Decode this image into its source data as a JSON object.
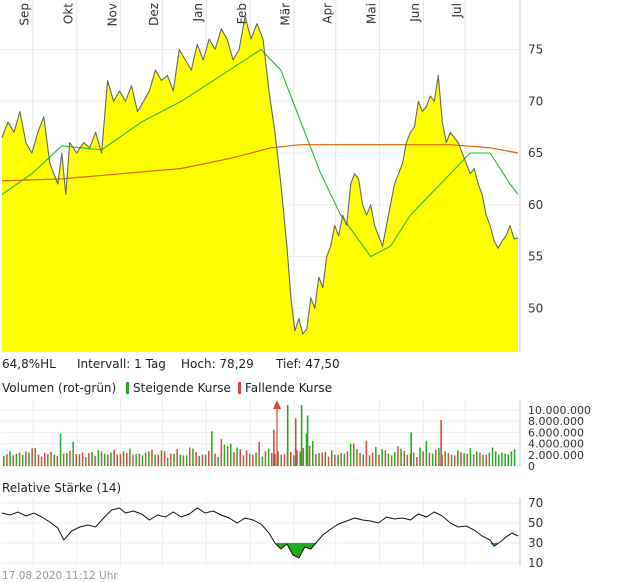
{
  "price_panel": {
    "months": [
      "Sep",
      "Okt",
      "Nov",
      "Dez",
      "Jan",
      "Feb",
      "Mär",
      "Apr",
      "Mai",
      "Jun",
      "Jul"
    ],
    "yticks": [
      "75",
      "70",
      "65",
      "60",
      "55",
      "50"
    ],
    "stats": {
      "hl": "64,8%HL",
      "interval": "Intervall: 1 Tag",
      "high": "Hoch:  78,29",
      "low": "Tief:  47,50"
    },
    "colors": {
      "fill": "#ffff00",
      "price": "#666666",
      "ma_short": "#22bb33",
      "ma_long": "#e06000"
    }
  },
  "volume_panel": {
    "title": "Volumen (rot-grün)",
    "legend_up": "Steigende Kurse",
    "legend_down": "Fallende Kurse",
    "yticks": [
      "10.000.000",
      "8.000.000",
      "6.000.000",
      "4.000.000",
      "2.000.000",
      "0"
    ],
    "colors": {
      "up": "#22aa22",
      "down": "#dd4444"
    }
  },
  "rsi_panel": {
    "title": "Relative Stärke (14)",
    "yticks": [
      "70",
      "50",
      "30",
      "10"
    ],
    "colors": {
      "line": "#111111",
      "oversold": "#22aa22"
    }
  },
  "footer": {
    "timestamp": "17.08.2020 11:12 Uhr"
  },
  "chart_data": [
    {
      "type": "line",
      "name": "price",
      "ylim": [
        45,
        80
      ],
      "x_range": [
        "2019-08-19",
        "2020-08-17"
      ],
      "series": [
        {
          "values": [
            [
              0,
              66.5
            ],
            [
              6,
              68
            ],
            [
              12,
              67
            ],
            [
              18,
              69
            ],
            [
              24,
              66
            ],
            [
              30,
              65
            ],
            [
              36,
              67
            ],
            [
              42,
              68.5
            ],
            [
              48,
              64
            ],
            [
              52,
              63
            ],
            [
              56,
              62
            ],
            [
              60,
              65
            ],
            [
              64,
              61
            ],
            [
              68,
              66
            ],
            [
              75,
              65
            ],
            [
              82,
              66
            ],
            [
              88,
              65.5
            ],
            [
              94,
              67
            ],
            [
              100,
              65
            ],
            [
              106,
              72
            ],
            [
              112,
              70
            ],
            [
              118,
              71
            ],
            [
              124,
              70
            ],
            [
              130,
              71.5
            ],
            [
              136,
              69
            ],
            [
              142,
              70
            ],
            [
              148,
              71
            ],
            [
              154,
              73
            ],
            [
              160,
              72
            ],
            [
              166,
              72.5
            ],
            [
              172,
              71
            ],
            [
              178,
              75
            ],
            [
              184,
              74
            ],
            [
              190,
              73
            ],
            [
              196,
              75.5
            ],
            [
              202,
              74
            ],
            [
              208,
              76
            ],
            [
              214,
              75
            ],
            [
              220,
              77
            ],
            [
              226,
              76
            ],
            [
              232,
              74
            ],
            [
              238,
              75
            ],
            [
              244,
              78.2
            ],
            [
              250,
              76
            ],
            [
              256,
              77.5
            ],
            [
              262,
              76
            ],
            [
              268,
              71
            ],
            [
              274,
              67
            ],
            [
              280,
              62
            ],
            [
              286,
              56
            ],
            [
              290,
              51
            ],
            [
              294,
              47.8
            ],
            [
              298,
              49
            ],
            [
              302,
              47.5
            ],
            [
              306,
              48
            ],
            [
              310,
              51
            ],
            [
              314,
              50
            ],
            [
              318,
              53
            ],
            [
              322,
              52
            ],
            [
              326,
              55
            ],
            [
              330,
              56
            ],
            [
              334,
              58
            ],
            [
              338,
              57
            ],
            [
              342,
              59
            ],
            [
              346,
              58
            ],
            [
              350,
              62
            ],
            [
              354,
              63
            ],
            [
              358,
              62.5
            ],
            [
              362,
              60
            ],
            [
              366,
              59
            ],
            [
              370,
              60
            ],
            [
              374,
              58
            ],
            [
              378,
              57
            ],
            [
              382,
              56
            ],
            [
              386,
              58
            ],
            [
              390,
              60
            ],
            [
              394,
              62
            ],
            [
              398,
              63
            ],
            [
              402,
              64
            ],
            [
              406,
              66
            ],
            [
              410,
              67
            ],
            [
              414,
              67.5
            ],
            [
              418,
              70
            ],
            [
              422,
              69
            ],
            [
              426,
              69.5
            ],
            [
              430,
              70.5
            ],
            [
              434,
              70
            ],
            [
              438,
              72.5
            ],
            [
              442,
              68
            ],
            [
              446,
              66
            ],
            [
              450,
              67
            ],
            [
              454,
              66.5
            ],
            [
              458,
              66
            ],
            [
              462,
              65
            ],
            [
              466,
              64
            ],
            [
              470,
              63
            ],
            [
              474,
              63.5
            ],
            [
              478,
              62
            ],
            [
              482,
              61
            ],
            [
              486,
              59
            ],
            [
              490,
              58
            ],
            [
              494,
              56.5
            ],
            [
              498,
              55.8
            ],
            [
              502,
              56.5
            ],
            [
              506,
              57
            ],
            [
              510,
              58
            ],
            [
              514,
              56.7
            ],
            [
              518,
              56.8
            ]
          ]
        },
        {
          "values": [
            [
              0,
              61
            ],
            [
              30,
              63
            ],
            [
              60,
              65.7
            ],
            [
              100,
              65.3
            ],
            [
              140,
              68
            ],
            [
              180,
              70
            ],
            [
              220,
              72.5
            ],
            [
              260,
              75
            ],
            [
              280,
              73
            ],
            [
              300,
              68
            ],
            [
              320,
              63
            ],
            [
              340,
              59
            ],
            [
              370,
              55
            ],
            [
              390,
              56
            ],
            [
              410,
              59
            ],
            [
              430,
              61
            ],
            [
              450,
              63
            ],
            [
              470,
              65
            ],
            [
              490,
              65
            ],
            [
              510,
              62
            ],
            [
              518,
              61
            ]
          ]
        },
        {
          "values": [
            [
              0,
              62.3
            ],
            [
              60,
              62.5
            ],
            [
              120,
              63
            ],
            [
              180,
              63.5
            ],
            [
              230,
              64.5
            ],
            [
              270,
              65.5
            ],
            [
              300,
              65.8
            ],
            [
              380,
              65.8
            ],
            [
              450,
              65.8
            ],
            [
              490,
              65.5
            ],
            [
              518,
              65
            ]
          ]
        }
      ]
    },
    {
      "type": "bar",
      "name": "volume",
      "ylim": [
        0,
        11000000
      ],
      "up_values": [
        1800000,
        2600000,
        2200000,
        2000000,
        2400000,
        3200000,
        1700000,
        2100000,
        2000000,
        5800000,
        2300000,
        4300000,
        2100000,
        1600000,
        2500000,
        2800000,
        2200000,
        2400000,
        2000000,
        2600000,
        3100000,
        2100000,
        1900000,
        2600000,
        2000000,
        2800000,
        1500000,
        2200000,
        2000000,
        1900000,
        3100000,
        1800000,
        2000000,
        6200000,
        1600000,
        3800000,
        4000000,
        3300000,
        1900000,
        2200000,
        2400000,
        1700000,
        3100000,
        2100000,
        2000000,
        2400000,
        1900000,
        2600000,
        5800000,
        4500000,
        2300000,
        2500000,
        2800000,
        2000000,
        2200000,
        4000000,
        3000000,
        2000000,
        1900000,
        3400000,
        3000000,
        2200000,
        2500000,
        3100000,
        2000000,
        2400000,
        3300000,
        4500000,
        2200000,
        3200000,
        2600000,
        2000000,
        2800000,
        2300000,
        3200000,
        2600000,
        2000000,
        2400000,
        3300000,
        2600000,
        2000000,
        2400000,
        2200000,
        2000000,
        2600000,
        3000000
      ],
      "down_values": [
        2100000,
        1900000,
        2400000,
        2600000,
        3200000,
        2000000,
        2400000,
        2500000,
        1800000,
        2200000,
        2700000,
        2100000,
        2400000,
        2300000,
        1800000,
        2600000,
        2000000,
        2900000,
        2100000,
        2300000,
        2000000,
        2200000,
        2400000,
        2900000,
        2000000,
        2600000,
        2200000,
        3000000,
        1900000,
        3300000,
        2500000,
        2000000,
        2700000,
        2200000,
        4800000,
        3500000,
        2500000,
        3000000,
        2800000,
        2000000,
        4300000,
        2600000,
        2300000,
        2600000,
        2100000,
        2500000,
        2800000,
        3200000,
        3600000,
        2100000,
        2400000,
        1700000,
        2000000,
        2300000,
        2600000,
        4000000,
        2300000,
        4500000,
        2400000,
        2000000,
        2800000,
        1900000,
        3500000,
        2700000,
        2200000,
        1600000,
        2600000,
        2400000,
        2900000,
        2000000,
        2300000,
        1900000,
        2500000,
        2200000,
        2000000,
        2400000,
        2000000
      ]
    },
    {
      "type": "line",
      "name": "rsi",
      "ylim": [
        10,
        70
      ],
      "values": [
        [
          0,
          60
        ],
        [
          8,
          58
        ],
        [
          16,
          61
        ],
        [
          24,
          57
        ],
        [
          32,
          60
        ],
        [
          40,
          56
        ],
        [
          48,
          51
        ],
        [
          56,
          45
        ],
        [
          62,
          33
        ],
        [
          70,
          42
        ],
        [
          78,
          46
        ],
        [
          86,
          48
        ],
        [
          94,
          46
        ],
        [
          102,
          55
        ],
        [
          110,
          63
        ],
        [
          118,
          65
        ],
        [
          124,
          60
        ],
        [
          132,
          62
        ],
        [
          140,
          59
        ],
        [
          148,
          53
        ],
        [
          156,
          58
        ],
        [
          164,
          56
        ],
        [
          172,
          61
        ],
        [
          180,
          56
        ],
        [
          188,
          59
        ],
        [
          196,
          65
        ],
        [
          204,
          60
        ],
        [
          212,
          62
        ],
        [
          220,
          58
        ],
        [
          228,
          55
        ],
        [
          236,
          50
        ],
        [
          244,
          55
        ],
        [
          252,
          53
        ],
        [
          260,
          49
        ],
        [
          268,
          40
        ],
        [
          274,
          30
        ],
        [
          280,
          24
        ],
        [
          286,
          29
        ],
        [
          292,
          18
        ],
        [
          298,
          15
        ],
        [
          304,
          26
        ],
        [
          310,
          24
        ],
        [
          316,
          31
        ],
        [
          322,
          38
        ],
        [
          330,
          44
        ],
        [
          338,
          49
        ],
        [
          346,
          52
        ],
        [
          354,
          55
        ],
        [
          362,
          53
        ],
        [
          370,
          52
        ],
        [
          378,
          50
        ],
        [
          386,
          56
        ],
        [
          394,
          54
        ],
        [
          402,
          55
        ],
        [
          410,
          53
        ],
        [
          418,
          59
        ],
        [
          426,
          56
        ],
        [
          434,
          61
        ],
        [
          442,
          57
        ],
        [
          450,
          50
        ],
        [
          458,
          46
        ],
        [
          466,
          47
        ],
        [
          474,
          43
        ],
        [
          482,
          37
        ],
        [
          490,
          33
        ],
        [
          494,
          27
        ],
        [
          500,
          31
        ],
        [
          506,
          36
        ],
        [
          512,
          40
        ],
        [
          518,
          37
        ]
      ]
    }
  ]
}
